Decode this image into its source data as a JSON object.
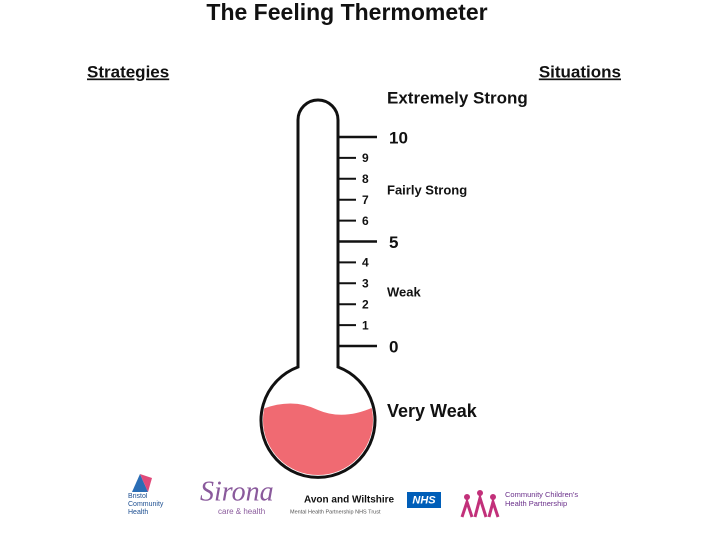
{
  "header": {
    "title": "The Feeling Thermometer",
    "left": "Strategies",
    "right": "Situations"
  },
  "scale": {
    "ticks": [
      "10",
      "9",
      "8",
      "7",
      "6",
      "5",
      "4",
      "3",
      "2",
      "1",
      "0"
    ],
    "labels": [
      "Extremely Strong",
      "Fairly Strong",
      "Weak",
      "Very Weak"
    ]
  },
  "logos": [
    {
      "name": "Bristol Community Health"
    },
    {
      "name": "Sirona",
      "tagline": "care & health"
    },
    {
      "name": "Avon and Wiltshire",
      "badge": "NHS",
      "tagline": "Mental Health Partnership NHS Trust"
    },
    {
      "name": "Community Children's Health Partnership"
    }
  ]
}
